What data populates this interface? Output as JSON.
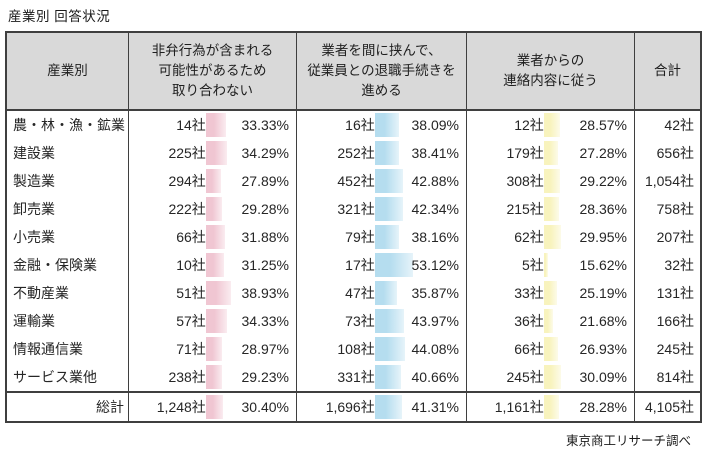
{
  "title": "産業別 回答状況",
  "footer": "東京商工リサーチ調べ",
  "count_suffix": "社",
  "colors": {
    "header_bg": "#d9d9d9",
    "border": "#3f3f3f",
    "bar_colors": [
      "#f0c6d2",
      "#b5ddef",
      "#f8f3bd"
    ]
  },
  "chart_data": {
    "type": "table",
    "title": "産業別 回答状況",
    "source": "東京商工リサーチ調べ",
    "columns": [
      "産業別",
      "非弁行為が含まれる\n可能性があるため\n取り合わない",
      "業者を間に挟んで、\n従業員との退職手続きを\n進める",
      "業者からの\n連絡内容に従う",
      "合計"
    ],
    "rows": [
      {
        "industry": "農・林・漁・鉱業",
        "values": [
          {
            "count": 14,
            "pct": 33.33
          },
          {
            "count": 16,
            "pct": 38.09
          },
          {
            "count": 12,
            "pct": 28.57
          }
        ],
        "total": 42
      },
      {
        "industry": "建設業",
        "values": [
          {
            "count": 225,
            "pct": 34.29
          },
          {
            "count": 252,
            "pct": 38.41
          },
          {
            "count": 179,
            "pct": 27.28
          }
        ],
        "total": 656
      },
      {
        "industry": "製造業",
        "values": [
          {
            "count": 294,
            "pct": 27.89
          },
          {
            "count": 452,
            "pct": 42.88
          },
          {
            "count": 308,
            "pct": 29.22
          }
        ],
        "total": 1054
      },
      {
        "industry": "卸売業",
        "values": [
          {
            "count": 222,
            "pct": 29.28
          },
          {
            "count": 321,
            "pct": 42.34
          },
          {
            "count": 215,
            "pct": 28.36
          }
        ],
        "total": 758
      },
      {
        "industry": "小売業",
        "values": [
          {
            "count": 66,
            "pct": 31.88
          },
          {
            "count": 79,
            "pct": 38.16
          },
          {
            "count": 62,
            "pct": 29.95
          }
        ],
        "total": 207
      },
      {
        "industry": "金融・保険業",
        "values": [
          {
            "count": 10,
            "pct": 31.25
          },
          {
            "count": 17,
            "pct": 53.12
          },
          {
            "count": 5,
            "pct": 15.62
          }
        ],
        "total": 32
      },
      {
        "industry": "不動産業",
        "values": [
          {
            "count": 51,
            "pct": 38.93
          },
          {
            "count": 47,
            "pct": 35.87
          },
          {
            "count": 33,
            "pct": 25.19
          }
        ],
        "total": 131
      },
      {
        "industry": "運輸業",
        "values": [
          {
            "count": 57,
            "pct": 34.33
          },
          {
            "count": 73,
            "pct": 43.97
          },
          {
            "count": 36,
            "pct": 21.68
          }
        ],
        "total": 166
      },
      {
        "industry": "情報通信業",
        "values": [
          {
            "count": 71,
            "pct": 28.97
          },
          {
            "count": 108,
            "pct": 44.08
          },
          {
            "count": 66,
            "pct": 26.93
          }
        ],
        "total": 245
      },
      {
        "industry": "サービス業他",
        "values": [
          {
            "count": 238,
            "pct": 29.23
          },
          {
            "count": 331,
            "pct": 40.66
          },
          {
            "count": 245,
            "pct": 30.09
          }
        ],
        "total": 814
      }
    ],
    "total_row": {
      "industry": "総計",
      "values": [
        {
          "count": 1248,
          "pct": 30.4
        },
        {
          "count": 1696,
          "pct": 41.31
        },
        {
          "count": 1161,
          "pct": 28.28
        }
      ],
      "total": 4105
    }
  }
}
